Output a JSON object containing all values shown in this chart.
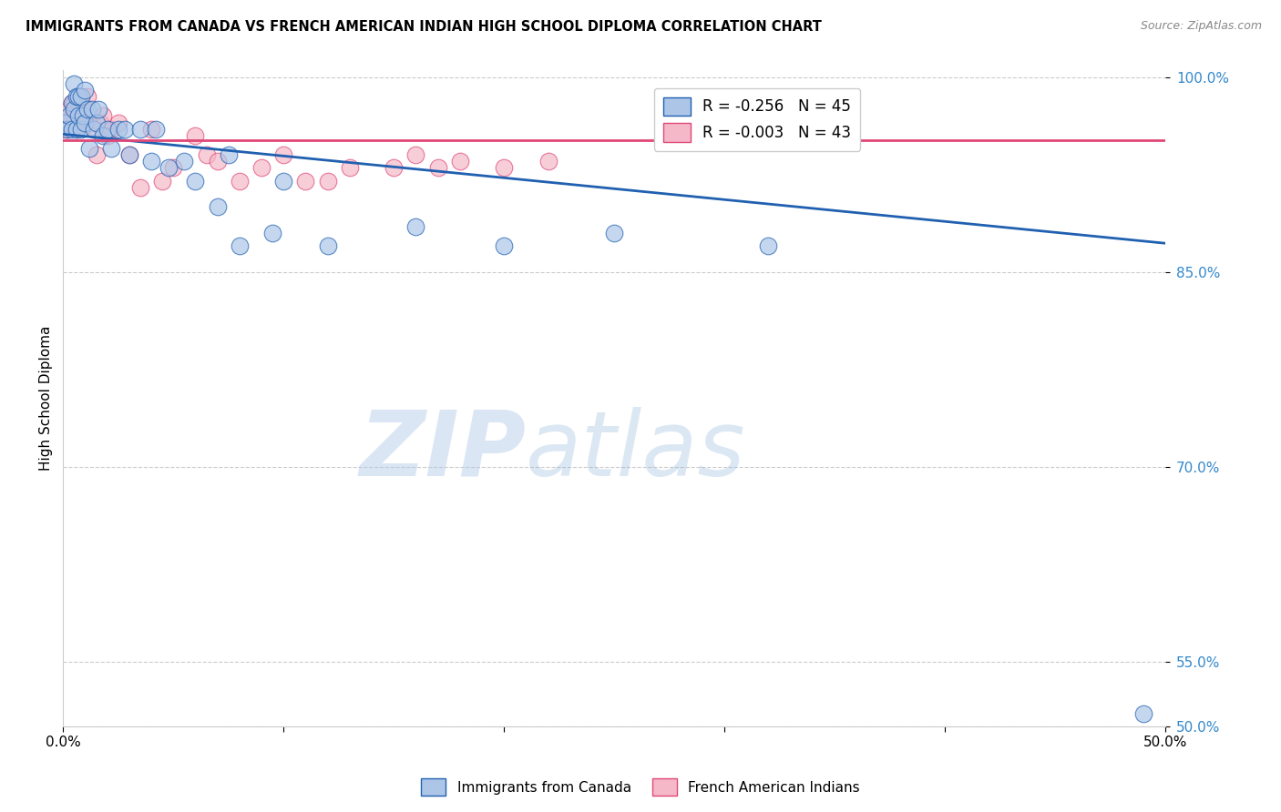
{
  "title": "IMMIGRANTS FROM CANADA VS FRENCH AMERICAN INDIAN HIGH SCHOOL DIPLOMA CORRELATION CHART",
  "source": "Source: ZipAtlas.com",
  "ylabel": "High School Diploma",
  "xlim": [
    0.0,
    0.5
  ],
  "ylim": [
    0.5,
    1.005
  ],
  "ytick_positions": [
    0.5,
    0.55,
    0.7,
    0.85,
    1.0
  ],
  "legend_blue_r": "-0.256",
  "legend_blue_n": "45",
  "legend_pink_r": "-0.003",
  "legend_pink_n": "43",
  "blue_color": "#adc6e8",
  "pink_color": "#f4b8c8",
  "blue_line_color": "#2060b0",
  "pink_line_color": "#e04878",
  "blue_scatter_x": [
    0.001,
    0.002,
    0.003,
    0.004,
    0.004,
    0.005,
    0.005,
    0.006,
    0.006,
    0.007,
    0.007,
    0.008,
    0.008,
    0.009,
    0.01,
    0.01,
    0.011,
    0.012,
    0.013,
    0.014,
    0.015,
    0.016,
    0.018,
    0.02,
    0.022,
    0.025,
    0.028,
    0.03,
    0.035,
    0.04,
    0.042,
    0.048,
    0.055,
    0.06,
    0.07,
    0.075,
    0.08,
    0.095,
    0.1,
    0.12,
    0.16,
    0.2,
    0.25,
    0.32,
    0.49
  ],
  "blue_scatter_y": [
    0.965,
    0.96,
    0.97,
    0.96,
    0.98,
    0.975,
    0.995,
    0.96,
    0.985,
    0.97,
    0.985,
    0.96,
    0.985,
    0.97,
    0.965,
    0.99,
    0.975,
    0.945,
    0.975,
    0.96,
    0.965,
    0.975,
    0.955,
    0.96,
    0.945,
    0.96,
    0.96,
    0.94,
    0.96,
    0.935,
    0.96,
    0.93,
    0.935,
    0.92,
    0.9,
    0.94,
    0.87,
    0.88,
    0.92,
    0.87,
    0.885,
    0.87,
    0.88,
    0.87,
    0.51
  ],
  "pink_scatter_x": [
    0.001,
    0.002,
    0.003,
    0.004,
    0.004,
    0.005,
    0.005,
    0.006,
    0.006,
    0.007,
    0.008,
    0.008,
    0.009,
    0.01,
    0.011,
    0.012,
    0.014,
    0.015,
    0.017,
    0.018,
    0.02,
    0.022,
    0.025,
    0.03,
    0.035,
    0.04,
    0.045,
    0.05,
    0.06,
    0.065,
    0.07,
    0.08,
    0.09,
    0.1,
    0.11,
    0.12,
    0.13,
    0.15,
    0.16,
    0.17,
    0.18,
    0.2,
    0.22
  ],
  "pink_scatter_y": [
    0.96,
    0.96,
    0.975,
    0.97,
    0.98,
    0.965,
    0.98,
    0.975,
    0.96,
    0.975,
    0.965,
    0.985,
    0.965,
    0.975,
    0.985,
    0.965,
    0.96,
    0.94,
    0.965,
    0.97,
    0.955,
    0.96,
    0.965,
    0.94,
    0.915,
    0.96,
    0.92,
    0.93,
    0.955,
    0.94,
    0.935,
    0.92,
    0.93,
    0.94,
    0.92,
    0.92,
    0.93,
    0.93,
    0.94,
    0.93,
    0.935,
    0.93,
    0.935
  ],
  "blue_trendline_x": [
    0.0,
    0.5
  ],
  "blue_trendline_y": [
    0.956,
    0.872
  ],
  "pink_trendline_x": [
    0.0,
    0.5
  ],
  "pink_trendline_y": [
    0.951,
    0.951
  ]
}
